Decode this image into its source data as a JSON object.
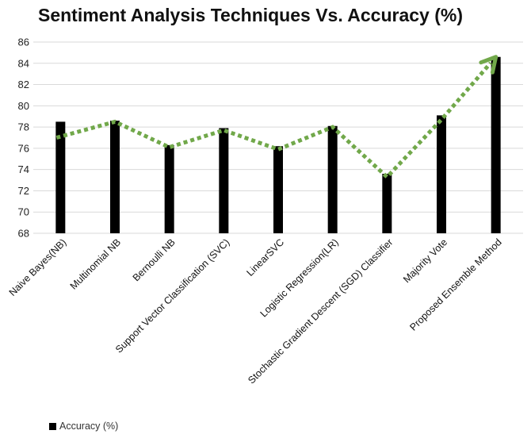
{
  "chart_data": {
    "type": "bar",
    "title": "Sentiment Analysis Techniques Vs. Accuracy (%)",
    "categories": [
      "Naive Bayes(NB)",
      "Multinomial NB",
      "Bernoulli NB",
      "Support Vector Classification (SVC)",
      "LinearSVC",
      "Logistic Regression(LR)",
      "Stochastic Gradient Descent (SGD) Classifier",
      "Majority Vote",
      "Proposed Ensemble Method"
    ],
    "series": [
      {
        "name": "Accuracy (%)",
        "values": [
          78.5,
          78.6,
          76.3,
          77.9,
          76.2,
          78.1,
          73.6,
          79.1,
          84.6
        ],
        "color": "#000000"
      }
    ],
    "trend_arrow": {
      "values": [
        77.0,
        78.5,
        76.1,
        77.7,
        75.9,
        78.0,
        73.3,
        78.7,
        84.6
      ],
      "color": "#71a84a",
      "style": "dotted",
      "arrowhead": "end"
    },
    "ylim": [
      68,
      86
    ],
    "yticks": [
      68,
      70,
      72,
      74,
      76,
      78,
      80,
      82,
      84,
      86
    ],
    "grid": true,
    "legend_position": "bottom-left",
    "xlabel": "",
    "ylabel": ""
  }
}
